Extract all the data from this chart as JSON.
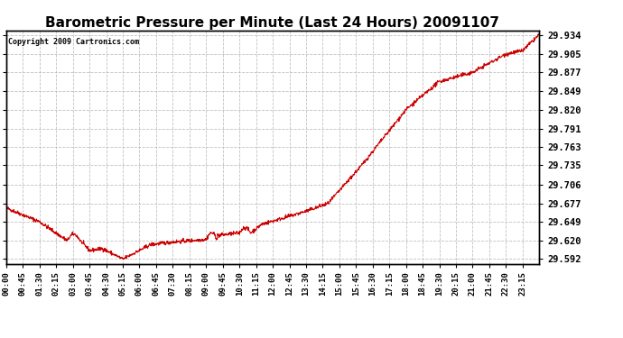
{
  "title": "Barometric Pressure per Minute (Last 24 Hours) 20091107",
  "copyright": "Copyright 2009 Cartronics.com",
  "line_color": "#cc0000",
  "background_color": "#ffffff",
  "grid_color": "#c0c0c0",
  "yticks": [
    29.592,
    29.62,
    29.649,
    29.677,
    29.706,
    29.735,
    29.763,
    29.791,
    29.82,
    29.849,
    29.877,
    29.905,
    29.934
  ],
  "xtick_labels": [
    "00:00",
    "00:45",
    "01:30",
    "02:15",
    "03:00",
    "03:45",
    "04:30",
    "05:15",
    "06:00",
    "06:45",
    "07:30",
    "08:15",
    "09:00",
    "09:45",
    "10:30",
    "11:15",
    "12:00",
    "12:45",
    "13:30",
    "14:15",
    "15:00",
    "15:45",
    "16:30",
    "17:15",
    "18:00",
    "18:45",
    "19:30",
    "20:15",
    "21:00",
    "21:45",
    "22:30",
    "23:15"
  ],
  "ylim": [
    29.585,
    29.941
  ],
  "xlim": [
    0,
    1439
  ],
  "title_fontsize": 11,
  "tick_fontsize": 7.5,
  "xtick_fontsize": 6.5
}
